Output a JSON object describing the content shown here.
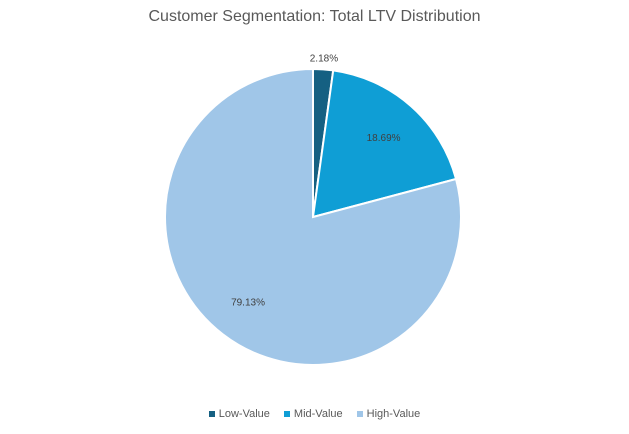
{
  "chart_data": {
    "type": "pie",
    "title": "Customer Segmentation: Total LTV Distribution",
    "categories": [
      "Low-Value",
      "Mid-Value",
      "High-Value"
    ],
    "values": [
      2.18,
      18.69,
      79.13
    ],
    "data_labels": [
      "2.18%",
      "18.69%",
      "79.13%"
    ],
    "colors": [
      "#156082",
      "#0f9ed5",
      "#a0c6e8"
    ],
    "legend_position": "bottom"
  }
}
